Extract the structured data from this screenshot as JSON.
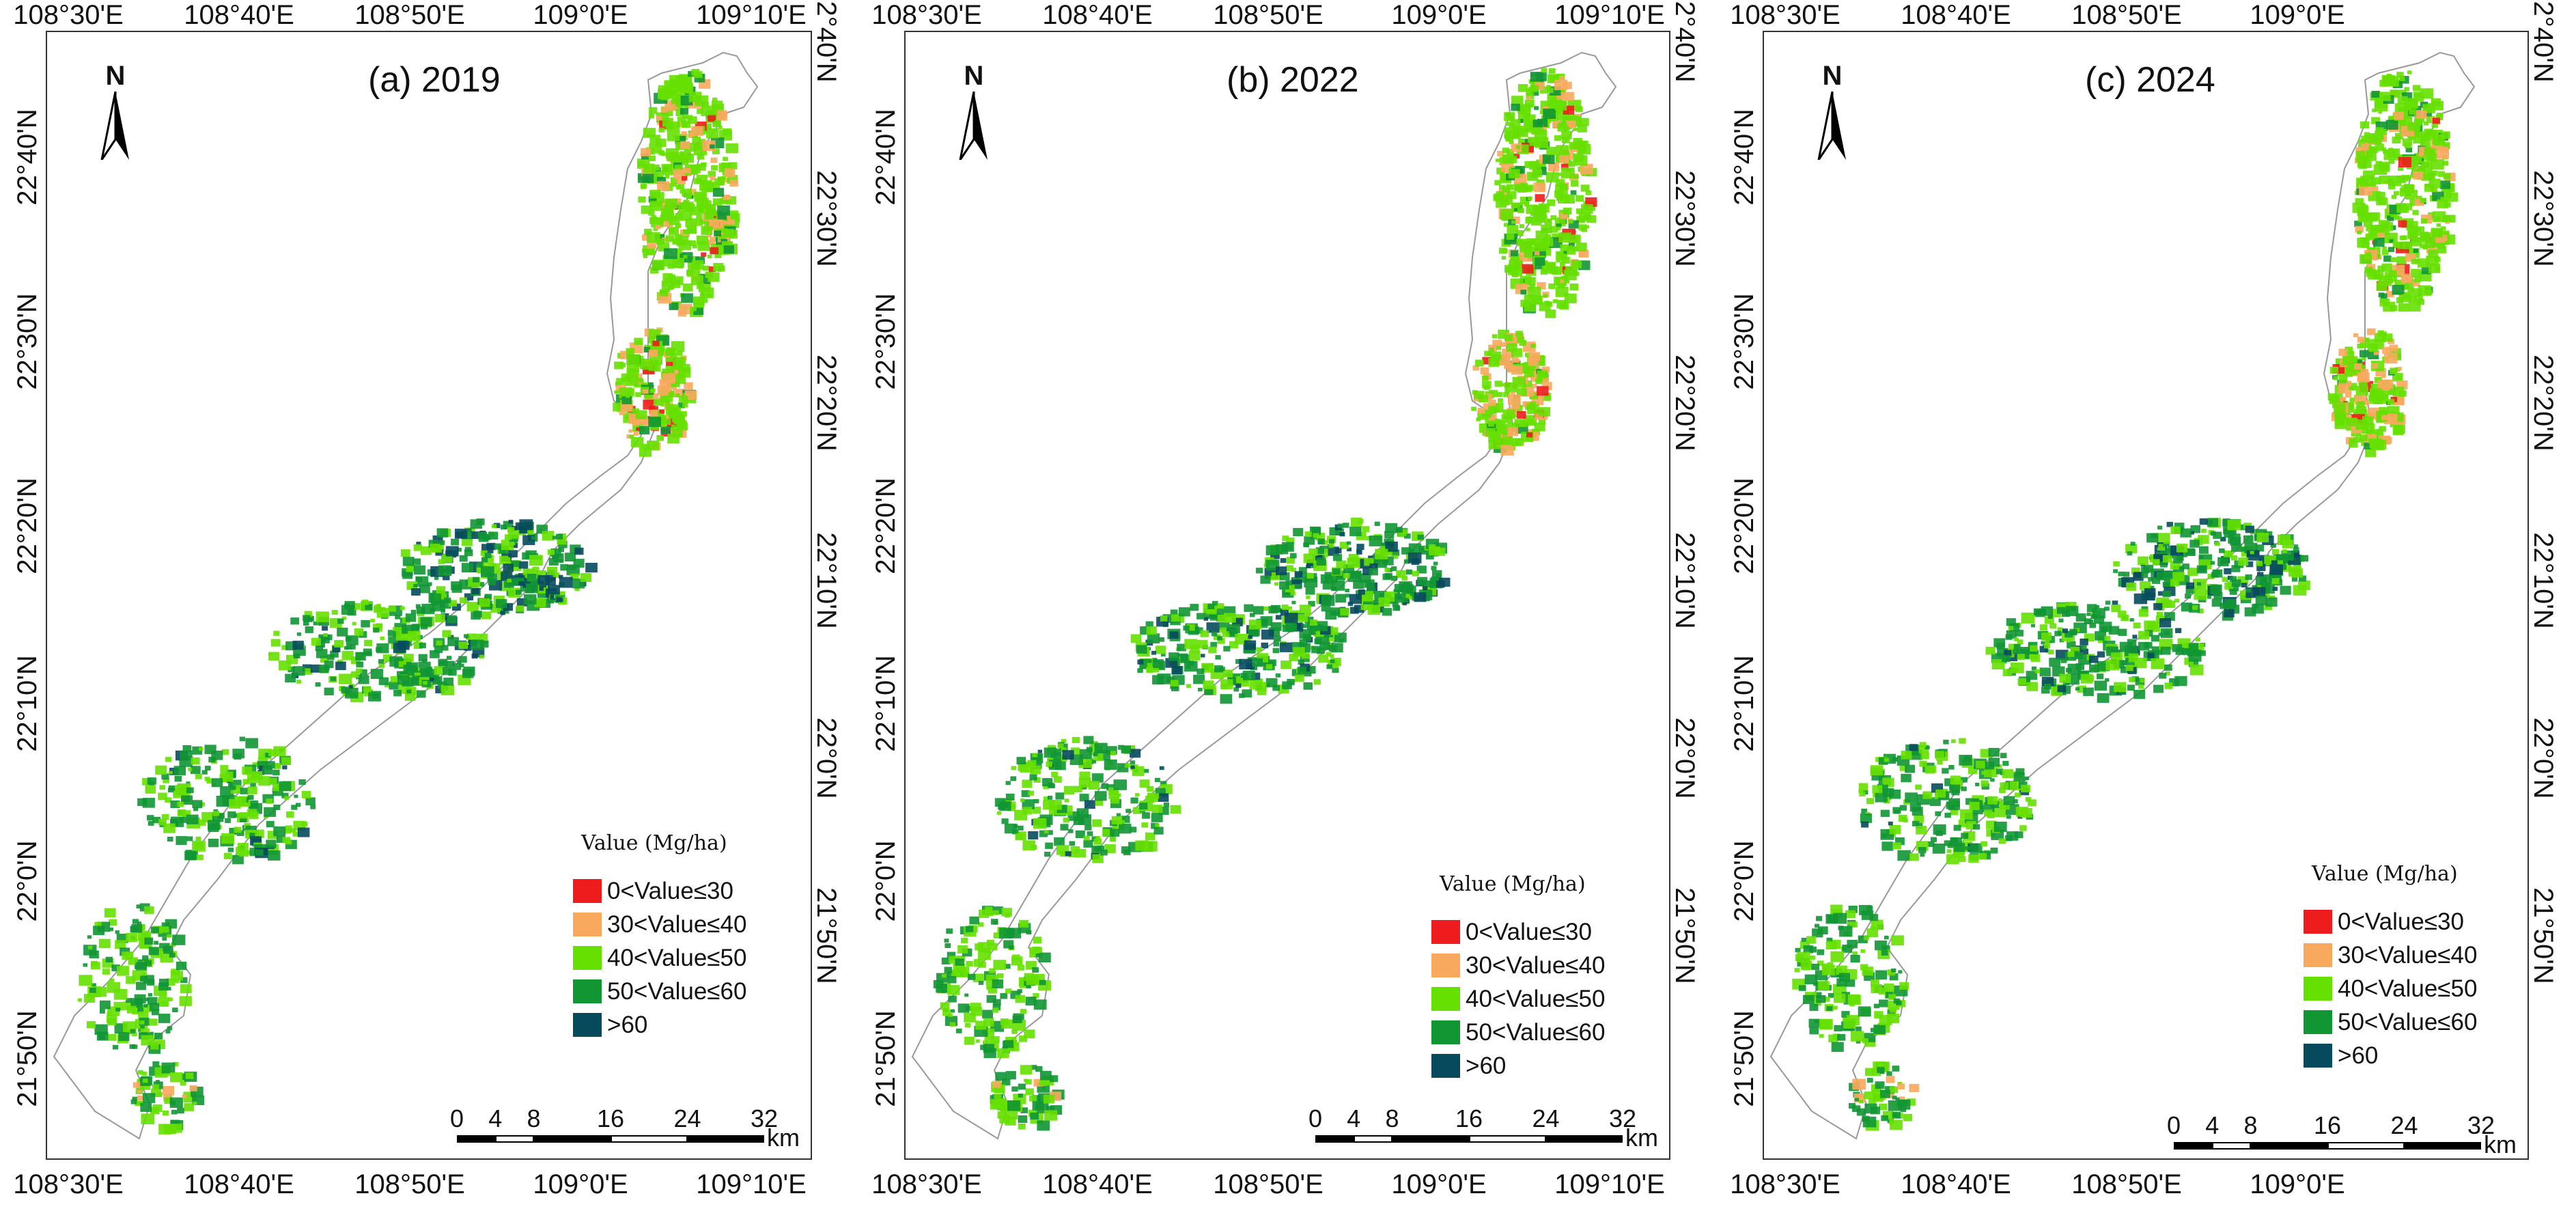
{
  "panels": [
    {
      "title": "(a) 2019"
    },
    {
      "title": "(b) 2022"
    },
    {
      "title": "(c) 2024"
    }
  ],
  "north_label": "N",
  "lon_ticks_top": [
    "108°30'E",
    "108°40'E",
    "108°50'E",
    "109°0'E",
    "109°10'E"
  ],
  "lon_ticks_bottom": [
    "108°30'E",
    "108°40'E",
    "108°50'E",
    "109°0'E",
    "109°10'E"
  ],
  "lon_ticks_c": [
    "108°30'E",
    "108°40'E",
    "108°50'E",
    "109°0'E"
  ],
  "lat_ticks": [
    "22°40'N",
    "22°30'N",
    "22°20'N",
    "22°10'N",
    "22°0'N",
    "21°50'N"
  ],
  "legend": {
    "title": "Value (Mg/ha)",
    "items": [
      {
        "label": "0<Value≤30",
        "color": "#ee1c1c"
      },
      {
        "label": "30<Value≤40",
        "color": "#f9a95e"
      },
      {
        "label": "40<Value≤50",
        "color": "#66e000"
      },
      {
        "label": "50<Value≤60",
        "color": "#119634"
      },
      {
        "label": ">60",
        "color": "#074a5e"
      }
    ]
  },
  "scalebar": {
    "labels": [
      "0",
      "4",
      "8",
      "16",
      "24",
      "32"
    ],
    "unit": "km"
  }
}
